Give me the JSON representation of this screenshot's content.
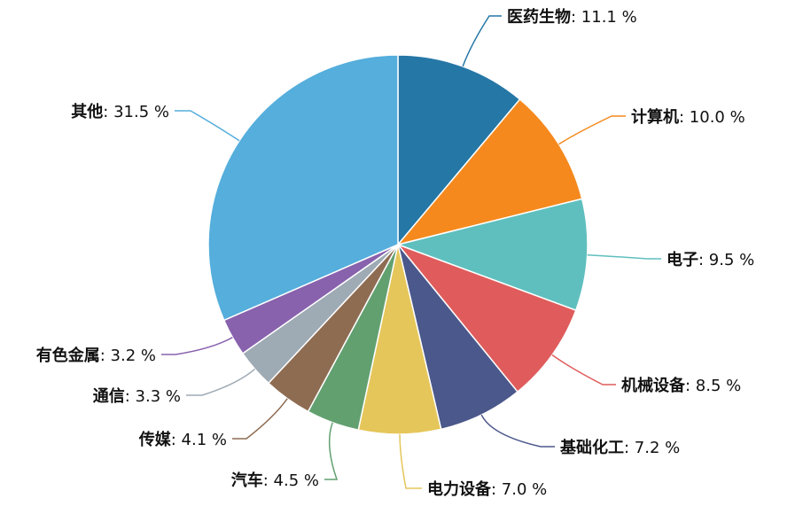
{
  "chart_data": {
    "type": "pie",
    "start_position": "top",
    "direction": "clockwise",
    "legend": "none",
    "slices": [
      {
        "label": "医药生物",
        "value": 11.1,
        "display": ": 11.1 %",
        "color": "#2577a6"
      },
      {
        "label": "计算机",
        "value": 10.0,
        "display": ": 10.0 %",
        "color": "#f5891d"
      },
      {
        "label": "电子",
        "value": 9.5,
        "display": ": 9.5 %",
        "color": "#5fbfbe"
      },
      {
        "label": "机械设备",
        "value": 8.5,
        "display": ": 8.5 %",
        "color": "#e05c5c"
      },
      {
        "label": "基础化工",
        "value": 7.2,
        "display": ": 7.2 %",
        "color": "#4b588b"
      },
      {
        "label": "电力设备",
        "value": 7.0,
        "display": ": 7.0 %",
        "color": "#e5c65a"
      },
      {
        "label": "汽车",
        "value": 4.5,
        "display": ": 4.5 %",
        "color": "#62a070"
      },
      {
        "label": "传媒",
        "value": 4.1,
        "display": ": 4.1 %",
        "color": "#8e6c52"
      },
      {
        "label": "通信",
        "value": 3.3,
        "display": ": 3.3 %",
        "color": "#9eaab4"
      },
      {
        "label": "有色金属",
        "value": 3.2,
        "display": ": 3.2 %",
        "color": "#8862ad"
      },
      {
        "label": "其他",
        "value": 31.5,
        "display": ": 31.5 %",
        "color": "#55aedc"
      }
    ]
  }
}
